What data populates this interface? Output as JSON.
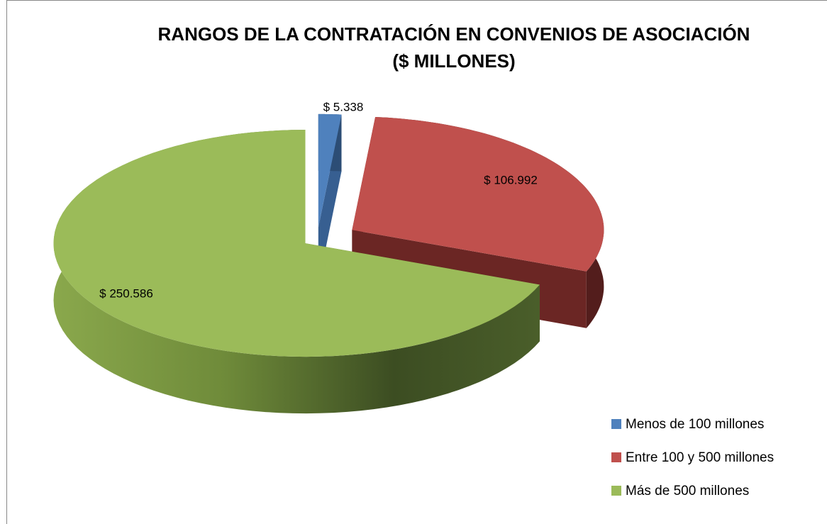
{
  "chart_data": {
    "type": "pie3d",
    "title": "RANGOS DE LA CONTRATACIÓN EN CONVENIOS DE ASOCIACIÓN",
    "subtitle": "($ MILLONES)",
    "categories": [
      "Menos de 100 millones",
      "Entre 100 y 500 millones",
      "Más de 500 millones"
    ],
    "values": [
      5338,
      106992,
      250586
    ],
    "value_labels": [
      "$ 5.338",
      "$ 106.992",
      "$ 250.586"
    ],
    "colors": [
      "#4f81bd",
      "#c0504d",
      "#9bbb59"
    ],
    "legend": "bottom-right"
  }
}
